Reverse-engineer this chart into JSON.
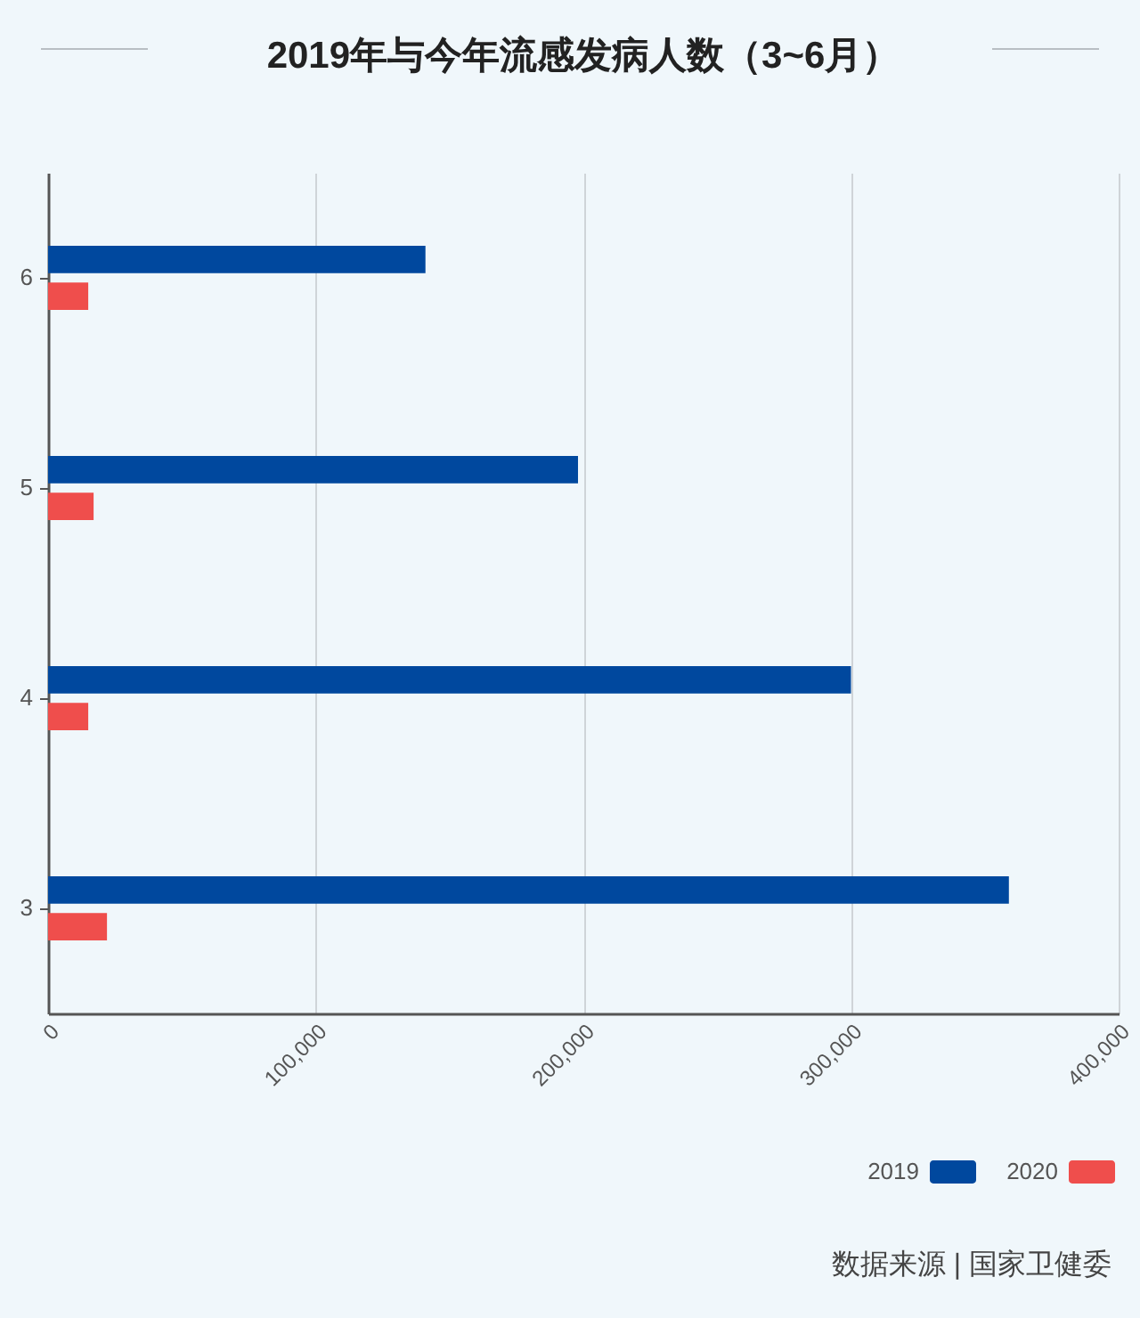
{
  "chart_data": {
    "type": "bar",
    "orientation": "horizontal",
    "title": "2019年与今年流感发病人数（3~6月）",
    "categories": [
      "6",
      "5",
      "4",
      "3"
    ],
    "series": [
      {
        "name": "2019",
        "color": "#00489e",
        "values": [
          141000,
          198000,
          300000,
          359000
        ]
      },
      {
        "name": "2020",
        "color": "#ef4e4c",
        "values": [
          15000,
          17000,
          15000,
          22000
        ]
      }
    ],
    "xlim": [
      0,
      400000
    ],
    "xticks": [
      0,
      {
        "value": 100000,
        "label": "100,000"
      },
      {
        "value": 200000,
        "label": "200,000"
      },
      {
        "value": 300000,
        "label": "300,000"
      },
      {
        "value": 400000,
        "label": "400,000"
      }
    ],
    "grid": "x",
    "legend": "bottom right",
    "annotations": [
      "数据来源 | 国家卫健委"
    ]
  }
}
